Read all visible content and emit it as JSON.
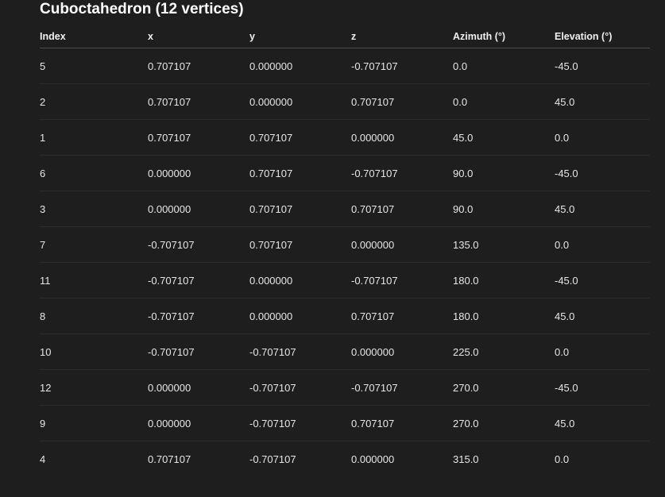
{
  "title": "Cuboctahedron (12 vertices)",
  "table": {
    "columns": [
      "Index",
      "x",
      "y",
      "z",
      "Azimuth (°)",
      "Elevation (°)"
    ],
    "rows": [
      [
        "5",
        "0.707107",
        "0.000000",
        "-0.707107",
        "0.0",
        "-45.0"
      ],
      [
        "2",
        "0.707107",
        "0.000000",
        "0.707107",
        "0.0",
        "45.0"
      ],
      [
        "1",
        "0.707107",
        "0.707107",
        "0.000000",
        "45.0",
        "0.0"
      ],
      [
        "6",
        "0.000000",
        "0.707107",
        "-0.707107",
        "90.0",
        "-45.0"
      ],
      [
        "3",
        "0.000000",
        "0.707107",
        "0.707107",
        "90.0",
        "45.0"
      ],
      [
        "7",
        "-0.707107",
        "0.707107",
        "0.000000",
        "135.0",
        "0.0"
      ],
      [
        "11",
        "-0.707107",
        "0.000000",
        "-0.707107",
        "180.0",
        "-45.0"
      ],
      [
        "8",
        "-0.707107",
        "0.000000",
        "0.707107",
        "180.0",
        "45.0"
      ],
      [
        "10",
        "-0.707107",
        "-0.707107",
        "0.000000",
        "225.0",
        "0.0"
      ],
      [
        "12",
        "0.000000",
        "-0.707107",
        "-0.707107",
        "270.0",
        "-45.0"
      ],
      [
        "9",
        "0.000000",
        "-0.707107",
        "0.707107",
        "270.0",
        "45.0"
      ],
      [
        "4",
        "0.707107",
        "-0.707107",
        "0.000000",
        "315.0",
        "0.0"
      ]
    ]
  }
}
